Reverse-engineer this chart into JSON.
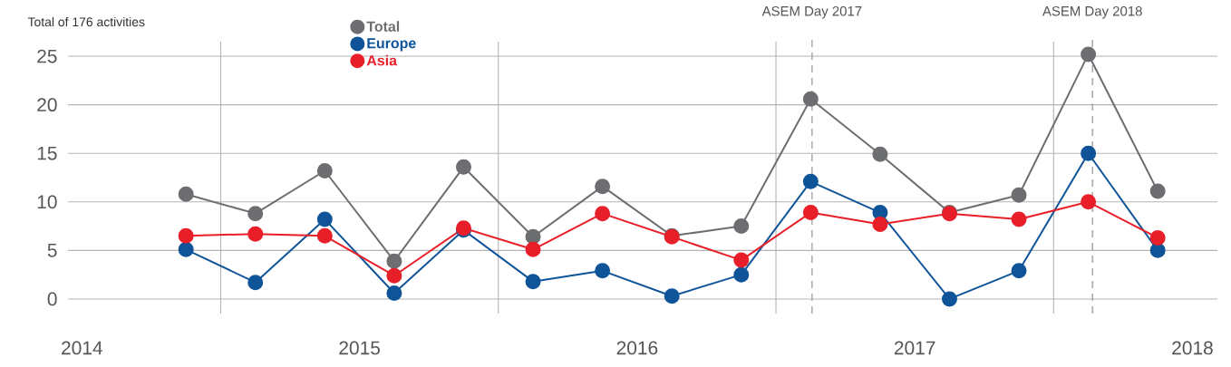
{
  "chart_data": {
    "type": "line",
    "title": "Total of 176 activities",
    "x": [
      2014.375,
      2014.625,
      2014.875,
      2015.125,
      2015.375,
      2015.625,
      2015.875,
      2016.125,
      2016.375,
      2016.625,
      2016.875,
      2017.125,
      2017.375,
      2017.625,
      2017.875
    ],
    "series": [
      {
        "name": "Total",
        "color": "#6d6e71",
        "values": [
          10.8,
          8.8,
          13.2,
          3.9,
          13.6,
          6.4,
          11.6,
          6.5,
          7.5,
          20.6,
          14.9,
          8.9,
          10.7,
          25.2,
          11.1
        ]
      },
      {
        "name": "Europe",
        "color": "#0f5499",
        "values": [
          5.1,
          1.7,
          8.2,
          0.6,
          7.1,
          1.8,
          2.9,
          0.3,
          2.5,
          12.1,
          8.9,
          0.0,
          2.9,
          15.0,
          5.0
        ]
      },
      {
        "name": "Asia",
        "color": "#e81f29",
        "values": [
          6.5,
          6.7,
          6.5,
          2.4,
          7.3,
          5.1,
          8.8,
          6.4,
          4.0,
          8.9,
          7.7,
          8.8,
          8.2,
          10.0,
          6.3
        ]
      }
    ],
    "xlim": [
      2013.95,
      2018.09
    ],
    "xticks": [
      2014,
      {
        "value": 2014.5,
        "label": null
      },
      2015,
      {
        "value": 2015.5,
        "label": null
      },
      2016,
      {
        "value": 2016.5,
        "label": null
      },
      2017,
      {
        "value": 2017.5,
        "label": null
      },
      2018
    ],
    "ylim": [
      -1.5,
      26.5
    ],
    "yticks": [
      0,
      5,
      10,
      15,
      20,
      25
    ],
    "ref_lines": [
      {
        "axis": "x",
        "value": 2016.63,
        "label": "ASEM Day 2017",
        "color": "#9d9d9d",
        "line_style": "dashed"
      },
      {
        "axis": "x",
        "value": 2017.64,
        "label": "ASEM Day 2018",
        "color": "#9d9d9d",
        "line_style": "dashed"
      }
    ],
    "grid": true,
    "legend": "top left",
    "marker": "circle",
    "line_style": "solid"
  }
}
